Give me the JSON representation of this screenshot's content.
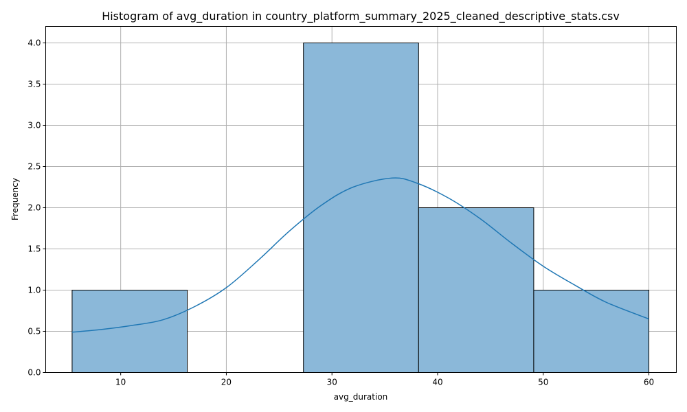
{
  "chart_data": {
    "type": "bar",
    "title": "Histogram of avg_duration in country_platform_summary_2025_cleaned_descriptive_stats.csv",
    "xlabel": "avg_duration",
    "ylabel": "Frequency",
    "xlim": [
      2.9,
      62.6
    ],
    "ylim": [
      0,
      4.2
    ],
    "x_ticks": [
      "10",
      "20",
      "30",
      "40",
      "50",
      "60"
    ],
    "y_ticks": [
      "0.0",
      "0.5",
      "1.0",
      "1.5",
      "2.0",
      "2.5",
      "3.0",
      "3.5",
      "4.0"
    ],
    "grid": true,
    "bins": [
      {
        "start": 5.4,
        "end": 16.3,
        "count": 1
      },
      {
        "start": 16.3,
        "end": 27.3,
        "count": 0
      },
      {
        "start": 27.3,
        "end": 38.2,
        "count": 4
      },
      {
        "start": 38.2,
        "end": 49.1,
        "count": 2
      },
      {
        "start": 49.1,
        "end": 60.0,
        "count": 1
      }
    ],
    "kde": {
      "x": [
        5.4,
        8,
        11,
        14,
        17,
        20,
        23,
        26,
        29,
        32,
        35.7,
        38,
        41,
        44,
        47,
        50,
        53,
        56,
        60
      ],
      "y": [
        0.49,
        0.52,
        0.57,
        0.64,
        0.8,
        1.03,
        1.36,
        1.72,
        2.03,
        2.25,
        2.36,
        2.3,
        2.12,
        1.87,
        1.57,
        1.29,
        1.06,
        0.85,
        0.65
      ]
    },
    "colors": {
      "bar_fill": "#8bb8d9",
      "bar_edge": "#000000",
      "line": "#1f77b4"
    }
  }
}
